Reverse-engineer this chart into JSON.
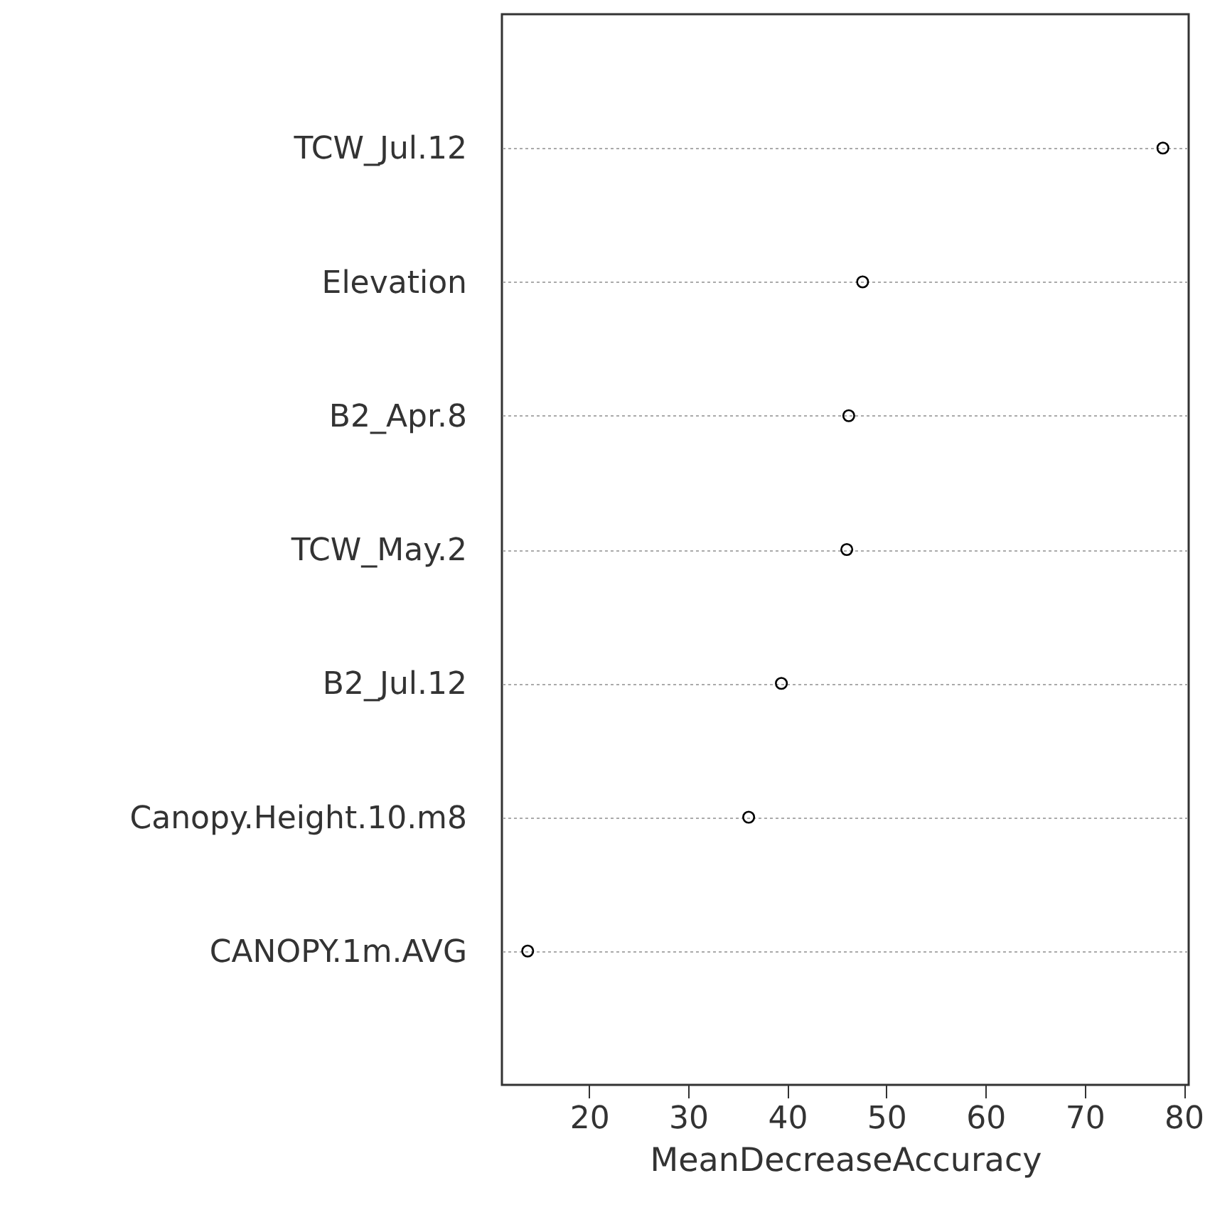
{
  "chart_data": {
    "type": "scatter",
    "orientation": "horizontal",
    "xlabel": "MeanDecreaseAccuracy",
    "categories": [
      "TCW_Jul.12",
      "Elevation",
      "B2_Apr.8",
      "TCW_May.2",
      "B2_Jul.12",
      "Canopy.Height.10.m8",
      "CANOPY.1m.AVG"
    ],
    "series": [
      {
        "color": "#000000",
        "values": [
          77.9,
          47.6,
          46.2,
          46.0,
          39.4,
          36.1,
          13.8
        ]
      }
    ],
    "xlim": [
      11.2,
      80.5
    ],
    "xticks": [
      20,
      30,
      40,
      50,
      60,
      70,
      80
    ],
    "grid": "y",
    "marker": "circle"
  }
}
